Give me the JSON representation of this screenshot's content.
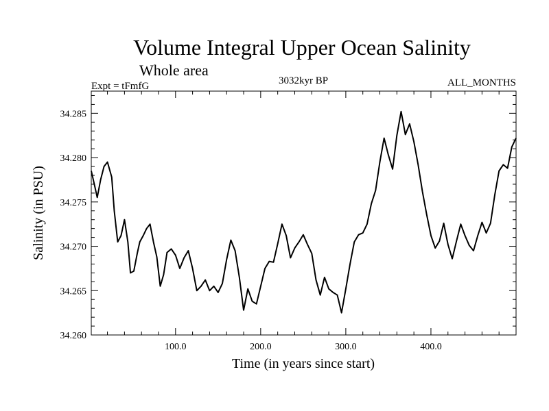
{
  "chart_data": {
    "type": "line",
    "title": "Volume Integral Upper Ocean Salinity",
    "subtitle": "Whole area",
    "experiment": "Expt = tFmfG",
    "period": "3032kyr BP",
    "months": "ALL_MONTHS",
    "xlabel": "Time (in years since start)",
    "ylabel": "Salinity (in PSU)",
    "xlim": [
      1,
      500
    ],
    "ylim": [
      34.26,
      34.2875
    ],
    "xticks": [
      100,
      200,
      300,
      400
    ],
    "xtick_labels": [
      "100.0",
      "200.0",
      "300.0",
      "400.0"
    ],
    "yticks": [
      34.26,
      34.265,
      34.27,
      34.275,
      34.28,
      34.285
    ],
    "ytick_labels": [
      "34.260",
      "34.265",
      "34.270",
      "34.275",
      "34.280",
      "34.285"
    ],
    "grid": false,
    "series": [
      {
        "name": "Salinity",
        "color": "#000000",
        "x": [
          1,
          5,
          8,
          12,
          16,
          20,
          25,
          28,
          32,
          36,
          40,
          44,
          47,
          51,
          55,
          58,
          62,
          66,
          70,
          74,
          78,
          82,
          86,
          90,
          95,
          100,
          105,
          110,
          115,
          120,
          125,
          130,
          135,
          140,
          145,
          150,
          155,
          160,
          165,
          170,
          175,
          180,
          185,
          190,
          195,
          200,
          205,
          210,
          215,
          220,
          225,
          230,
          235,
          240,
          245,
          250,
          255,
          260,
          265,
          270,
          275,
          280,
          285,
          290,
          295,
          300,
          305,
          310,
          315,
          320,
          325,
          330,
          335,
          340,
          345,
          350,
          355,
          360,
          365,
          370,
          375,
          380,
          385,
          390,
          395,
          400,
          405,
          410,
          415,
          420,
          425,
          430,
          435,
          440,
          445,
          450,
          455,
          460,
          465,
          470,
          475,
          480,
          485,
          490,
          495,
          500
        ],
        "values": [
          34.2785,
          34.2768,
          34.2755,
          34.2775,
          34.279,
          34.2795,
          34.2778,
          34.274,
          34.2705,
          34.2712,
          34.273,
          34.2705,
          34.267,
          34.2672,
          34.2692,
          34.2705,
          34.2712,
          34.272,
          34.2725,
          34.2705,
          34.2688,
          34.2655,
          34.2668,
          34.2693,
          34.2697,
          34.269,
          34.2675,
          34.2687,
          34.2695,
          34.2675,
          34.265,
          34.2655,
          34.2662,
          34.265,
          34.2655,
          34.2648,
          34.2658,
          34.2685,
          34.2707,
          34.2695,
          34.2665,
          34.2628,
          34.2652,
          34.2638,
          34.2635,
          34.2655,
          34.2675,
          34.2683,
          34.2682,
          34.2703,
          34.2725,
          34.2712,
          34.2687,
          34.2698,
          34.2705,
          34.2713,
          34.2702,
          34.2692,
          34.2662,
          34.2645,
          34.2665,
          34.2652,
          34.2648,
          34.2645,
          34.2625,
          34.2652,
          34.268,
          34.2705,
          34.2713,
          34.2715,
          34.2725,
          34.2748,
          34.2763,
          34.2795,
          34.2822,
          34.2803,
          34.2787,
          34.2825,
          34.2852,
          34.2826,
          34.2838,
          34.2818,
          34.2792,
          34.2762,
          34.2736,
          34.2712,
          34.2698,
          34.2706,
          34.2726,
          34.2702,
          34.2686,
          34.2706,
          34.2725,
          34.2712,
          34.2701,
          34.2695,
          34.2712,
          34.2727,
          34.2715,
          34.2726,
          34.2758,
          34.2785,
          34.2792,
          34.2788,
          34.2812,
          34.2822
        ]
      }
    ]
  }
}
